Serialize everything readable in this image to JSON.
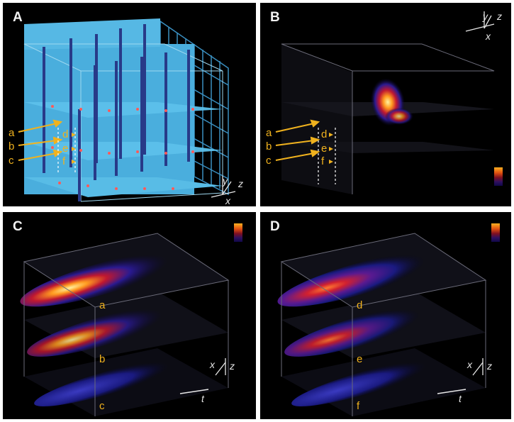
{
  "panels": {
    "a": {
      "letter": "A",
      "annotations": [
        "a",
        "b",
        "c",
        "d",
        "e",
        "f"
      ],
      "axes": [
        "y",
        "z",
        "x"
      ]
    },
    "b": {
      "letter": "B",
      "annotations": [
        "a",
        "b",
        "c",
        "d",
        "e",
        "f"
      ],
      "axes": [
        "y",
        "z",
        "x"
      ]
    },
    "c": {
      "letter": "C",
      "slices": [
        "a",
        "b",
        "c"
      ],
      "axes": [
        "x",
        "z",
        "t"
      ]
    },
    "d": {
      "letter": "D",
      "slices": [
        "d",
        "e",
        "f"
      ],
      "axes": [
        "x",
        "z",
        "t"
      ]
    }
  },
  "colors": {
    "annotation": "#f0b21e",
    "structure": "#4fb6e6",
    "pillar": "#283a88",
    "heat_hot": "#fff2a0",
    "heat_mid": "#e04a14",
    "heat_cold": "#1a1670"
  },
  "icons": [
    "arrow-icon",
    "colorbar-icon",
    "axis-triad-icon"
  ]
}
